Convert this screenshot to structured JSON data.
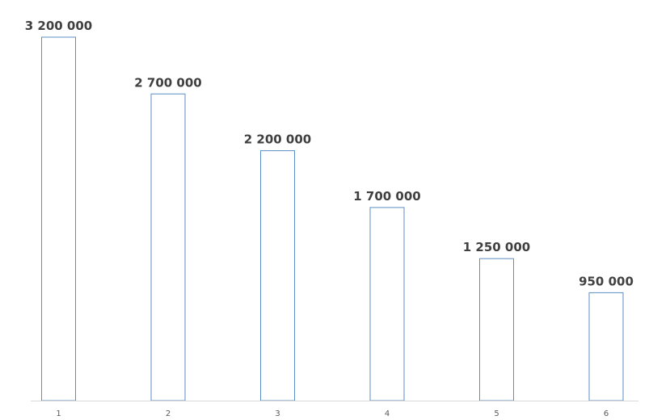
{
  "chart_data": {
    "type": "bar",
    "categories": [
      "1",
      "2",
      "3",
      "4",
      "5",
      "6"
    ],
    "values": [
      3200000,
      2700000,
      2200000,
      1700000,
      1250000,
      950000
    ],
    "value_labels": [
      "3 200 000",
      "2 700 000",
      "2 200 000",
      "1 700 000",
      "1 250 000",
      "950 000"
    ],
    "title": "",
    "xlabel": "",
    "ylabel": "",
    "ylim": [
      0,
      3200000
    ],
    "grid": false,
    "legend": "none",
    "colors": {
      "bar_outline": "#5b8ec4",
      "bar_fill": "#ffffff",
      "label_text": "#404040",
      "axis": "#d9d9d9"
    }
  }
}
